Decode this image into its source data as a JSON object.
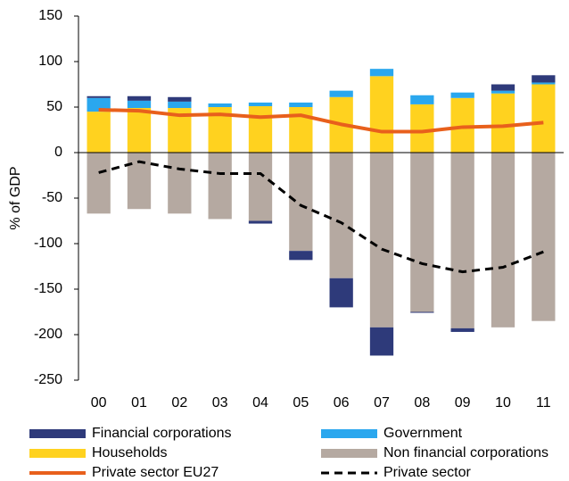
{
  "chart_data": {
    "type": "bar",
    "y_label": "% of GDP",
    "categories": [
      "00",
      "01",
      "02",
      "03",
      "04",
      "05",
      "06",
      "07",
      "08",
      "09",
      "10",
      "11"
    ],
    "series": [
      {
        "name": "Financial corporations",
        "color": "#2e3a7a",
        "values": [
          2,
          5,
          5,
          0,
          -3,
          -10,
          -32,
          -31,
          -1,
          -4,
          7,
          8
        ]
      },
      {
        "name": "Government",
        "color": "#2aa7ee",
        "values": [
          15,
          8,
          7,
          4,
          4,
          5,
          7,
          8,
          10,
          6,
          3,
          2
        ]
      },
      {
        "name": "Households",
        "color": "#ffd21f",
        "values": [
          45,
          49,
          49,
          50,
          51,
          50,
          61,
          84,
          53,
          60,
          65,
          75
        ]
      },
      {
        "name": "Non financial corporations",
        "color": "#b5a9a1",
        "values": [
          -67,
          -62,
          -67,
          -73,
          -75,
          -108,
          -138,
          -192,
          -175,
          -193,
          -192,
          -185
        ]
      },
      {
        "name": "Private sector EU27",
        "color": "#e8601c",
        "type": "line",
        "values": [
          47,
          46,
          41,
          42,
          39,
          41,
          31,
          23,
          23,
          28,
          29,
          33
        ]
      },
      {
        "name": "Private sector",
        "color": "#000000",
        "type": "line",
        "dashed": true,
        "values": [
          -22,
          -10,
          -18,
          -23,
          -23,
          -58,
          -77,
          -106,
          -122,
          -131,
          -126,
          -109
        ]
      }
    ],
    "ylim": [
      -250,
      150
    ],
    "yticks": [
      -250,
      -200,
      -150,
      -100,
      -50,
      0,
      50,
      100,
      150
    ]
  }
}
